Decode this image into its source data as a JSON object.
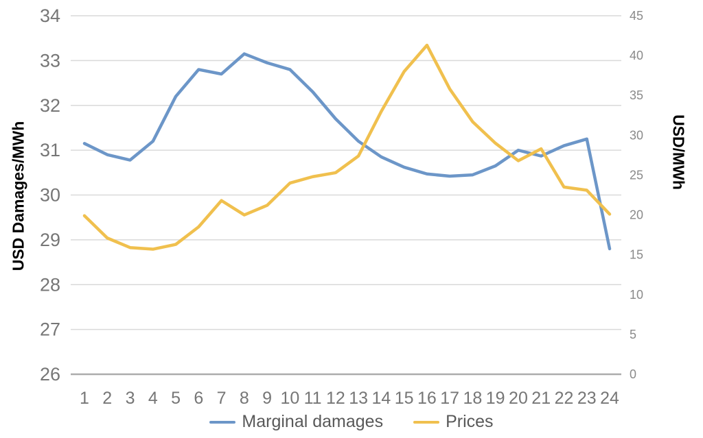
{
  "chart_data": {
    "type": "line",
    "title": "",
    "x": [
      1,
      2,
      3,
      4,
      5,
      6,
      7,
      8,
      9,
      10,
      11,
      12,
      13,
      14,
      15,
      16,
      17,
      18,
      19,
      20,
      21,
      22,
      23,
      24
    ],
    "series": [
      {
        "name": "Marginal damages",
        "axis": "left",
        "color": "#6C96C8",
        "values": [
          31.15,
          30.9,
          30.78,
          31.2,
          32.2,
          32.8,
          32.7,
          33.15,
          32.95,
          32.8,
          32.3,
          31.7,
          31.2,
          30.85,
          30.62,
          30.47,
          30.42,
          30.45,
          30.65,
          31.0,
          30.87,
          31.1,
          31.25,
          28.8
        ]
      },
      {
        "name": "Prices",
        "axis": "right",
        "color": "#F0C04E",
        "values": [
          19.9,
          17.1,
          15.9,
          15.7,
          16.3,
          18.5,
          21.8,
          20.0,
          21.2,
          24.0,
          24.8,
          25.3,
          27.4,
          33.0,
          38.0,
          41.3,
          35.8,
          31.7,
          29.0,
          26.8,
          28.3,
          23.5,
          23.1,
          20.1
        ]
      }
    ],
    "left_axis": {
      "label": "USD Damages/MWh",
      "min": 26,
      "max": 34,
      "ticks": [
        26,
        27,
        28,
        29,
        30,
        31,
        32,
        33,
        34
      ]
    },
    "right_axis": {
      "label": "USD/MWh",
      "min": 0,
      "max": 45,
      "ticks": [
        0,
        5,
        10,
        15,
        20,
        25,
        30,
        35,
        40,
        45
      ]
    },
    "x_axis": {
      "ticks": [
        1,
        2,
        3,
        4,
        5,
        6,
        7,
        8,
        9,
        10,
        11,
        12,
        13,
        14,
        15,
        16,
        17,
        18,
        19,
        20,
        21,
        22,
        23,
        24
      ]
    },
    "grid": true,
    "legend_position": "bottom",
    "style": {
      "grid_color": "#D9D9D9",
      "axis_line_color": "#ACACAC",
      "left_tick_color": "#767676",
      "right_tick_color": "#8A8A8A",
      "x_tick_color": "#767676",
      "legend_text_color": "#595959"
    }
  }
}
